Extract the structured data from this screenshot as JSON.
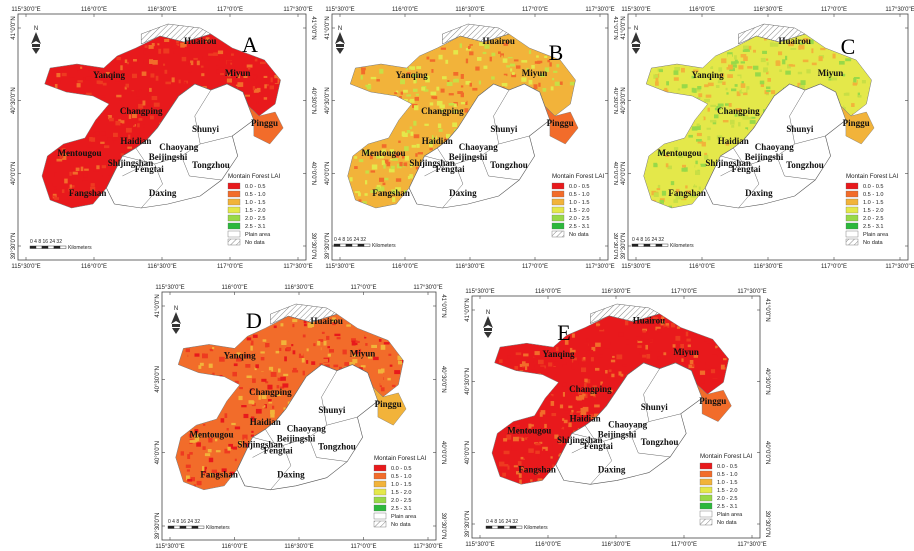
{
  "ticks": {
    "top": [
      "115°30'0\"E",
      "116°0'0\"E",
      "116°30'0\"E",
      "117°0'0\"E",
      "117°30'0\"E"
    ],
    "bottom": [
      "115°30'0\"E",
      "116°0'0\"E",
      "116°30'0\"E",
      "117°0'0\"E",
      "117°30'0\"E"
    ],
    "left": [
      "41°0'0\"N",
      "40°30'0\"N",
      "40°0'0\"N",
      "39°30'0\"N"
    ],
    "right": [
      "41°0'0\"N",
      "40°30'0\"N",
      "40°0'0\"N",
      "39°30'0\"N"
    ]
  },
  "north_label": "N",
  "scale": {
    "numbers": "0 4 8   16  24  32",
    "unit": "Kilometers"
  },
  "legend": {
    "title": "Montain Forest LAI",
    "classes": [
      {
        "label": "0.0 - 0.5",
        "color": "#e8191c"
      },
      {
        "label": "0.5 - 1.0",
        "color": "#f26c2a"
      },
      {
        "label": "1.0 - 1.5",
        "color": "#f2b33a"
      },
      {
        "label": "1.5 - 2.0",
        "color": "#e4e84a"
      },
      {
        "label": "2.0 - 2.5",
        "color": "#98d948"
      },
      {
        "label": "2.5 - 3.1",
        "color": "#2cb83c"
      }
    ],
    "plain_label": "Plain area",
    "nodata_label": "No data"
  },
  "places": {
    "Huairou": "Huairou",
    "Yanqing": "Yanqing",
    "Miyun": "Miyun",
    "Changping": "Changping",
    "Pinggu": "Pinggu",
    "Shunyi": "Shunyi",
    "Haidian": "Haidian",
    "Mentougou": "Mentougou",
    "Shijingshan": "Shijingshan",
    "Chaoyang": "Chaoyang",
    "Beijingshi": "Beijingshi",
    "Fengtai": "Fengtai",
    "Tongzhou": "Tongzhou",
    "Fangshan": "Fangshan",
    "Daxing": "Daxing"
  },
  "panels": [
    {
      "id": "A",
      "letter": "A",
      "legend_order": "plain_first",
      "palette": [
        "#e8191c",
        "#ee3a20",
        "#f26c2a",
        "#e8191c"
      ]
    },
    {
      "id": "B",
      "letter": "B",
      "legend_order": "nodata_first",
      "palette": [
        "#f2b33a",
        "#e4e84a",
        "#f26c2a",
        "#c8df45"
      ]
    },
    {
      "id": "C",
      "letter": "C",
      "legend_order": "plain_first",
      "palette": [
        "#e4e84a",
        "#98d948",
        "#f2b33a",
        "#c8df45"
      ]
    },
    {
      "id": "D",
      "letter": "D",
      "legend_order": "plain_first",
      "palette": [
        "#f26c2a",
        "#e8191c",
        "#f2b33a",
        "#ee3a20"
      ]
    },
    {
      "id": "E",
      "letter": "E",
      "legend_order": "plain_first",
      "palette": [
        "#e8191c",
        "#ee3a20",
        "#f26c2a",
        "#e8191c"
      ]
    }
  ]
}
